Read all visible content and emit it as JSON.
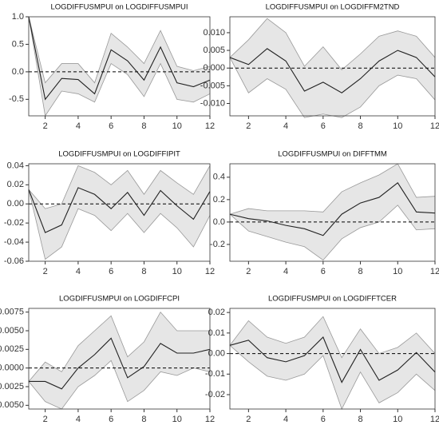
{
  "chart_data": [
    {
      "type": "line",
      "title": "LOGDIFFUSMPUI on LOGDIFFUSMPUI",
      "x": [
        1,
        2,
        3,
        4,
        5,
        6,
        7,
        8,
        9,
        10,
        11,
        12
      ],
      "values": [
        1.0,
        -0.5,
        -0.12,
        -0.14,
        -0.4,
        0.4,
        0.2,
        -0.15,
        0.45,
        -0.2,
        -0.27,
        -0.15
      ],
      "lower": [
        1.0,
        -0.8,
        -0.35,
        -0.4,
        -0.55,
        0.15,
        -0.05,
        -0.45,
        0.15,
        -0.5,
        -0.55,
        -0.4
      ],
      "upper": [
        1.0,
        -0.2,
        0.15,
        0.15,
        -0.2,
        0.7,
        0.45,
        0.15,
        0.75,
        0.1,
        0.02,
        0.1
      ],
      "xlim": [
        1,
        12
      ],
      "xticks": [
        2,
        4,
        6,
        8,
        10,
        12
      ],
      "ylim": [
        -0.8,
        1.0
      ],
      "yticks": [
        {
          "value": -0.5,
          "label": "-0.5"
        },
        {
          "value": 0,
          "label": "0.0"
        },
        {
          "value": 0.5,
          "label": "0.5"
        },
        {
          "value": 1,
          "label": "1.0"
        }
      ],
      "color": "#222222",
      "band_color": "#e6e6e6",
      "band_edge": "#999999",
      "zero_line": true
    },
    {
      "type": "line",
      "title": "LOGDIFFUSMPUI on LOGDIFFM2TND",
      "x": [
        1,
        2,
        3,
        4,
        5,
        6,
        7,
        8,
        9,
        10,
        11,
        12
      ],
      "values": [
        0.003,
        0.001,
        0.0055,
        0.002,
        -0.0065,
        -0.004,
        -0.007,
        -0.003,
        0.002,
        0.005,
        0.003,
        -0.0025
      ],
      "lower": [
        0.003,
        -0.007,
        -0.003,
        -0.006,
        -0.014,
        -0.013,
        -0.014,
        -0.011,
        -0.005,
        -0.002,
        -0.003,
        -0.009
      ],
      "upper": [
        0.003,
        0.008,
        0.014,
        0.01,
        0.0005,
        0.006,
        -0.0005,
        0.004,
        0.009,
        0.0105,
        0.009,
        0.003
      ],
      "xlim": [
        1,
        12
      ],
      "xticks": [
        2,
        4,
        6,
        8,
        10,
        12
      ],
      "ylim": [
        -0.0135,
        0.0145
      ],
      "yticks": [
        {
          "value": -0.01,
          "label": "-0.010"
        },
        {
          "value": -0.005,
          "label": "-0.005"
        },
        {
          "value": 0,
          "label": "0.000"
        },
        {
          "value": 0.005,
          "label": "0.005"
        },
        {
          "value": 0.01,
          "label": "0.010"
        }
      ],
      "color": "#222222",
      "band_color": "#e6e6e6",
      "band_edge": "#999999",
      "zero_line": true
    },
    {
      "type": "line",
      "title": "LOGDIFFUSMPUI on LOGDIFFIPIT",
      "x": [
        1,
        2,
        3,
        4,
        5,
        6,
        7,
        8,
        9,
        10,
        11,
        12
      ],
      "values": [
        0.015,
        -0.03,
        -0.022,
        0.017,
        0.01,
        -0.005,
        0.012,
        -0.012,
        0.014,
        -0.002,
        -0.016,
        0.013
      ],
      "lower": [
        0.015,
        -0.058,
        -0.045,
        -0.005,
        -0.012,
        -0.028,
        -0.01,
        -0.03,
        -0.01,
        -0.025,
        -0.045,
        -0.012
      ],
      "upper": [
        0.015,
        -0.005,
        0.0,
        0.04,
        0.033,
        0.02,
        0.035,
        0.01,
        0.035,
        0.022,
        0.01,
        0.04
      ],
      "xlim": [
        1,
        12
      ],
      "xticks": [
        2,
        4,
        6,
        8,
        10,
        12
      ],
      "ylim": [
        -0.06,
        0.042
      ],
      "yticks": [
        {
          "value": -0.06,
          "label": "-0.06"
        },
        {
          "value": -0.04,
          "label": "-0.04"
        },
        {
          "value": -0.02,
          "label": "-0.02"
        },
        {
          "value": 0,
          "label": "0.00"
        },
        {
          "value": 0.02,
          "label": "0.02"
        },
        {
          "value": 0.04,
          "label": "0.04"
        }
      ],
      "color": "#222222",
      "band_color": "#e6e6e6",
      "band_edge": "#999999",
      "zero_line": true
    },
    {
      "type": "line",
      "title": "LOGDIFFUSMPUI on DIFFTMM",
      "x": [
        1,
        2,
        3,
        4,
        5,
        6,
        7,
        8,
        9,
        10,
        11,
        12
      ],
      "values": [
        0.07,
        0.03,
        0.01,
        -0.03,
        -0.06,
        -0.12,
        0.07,
        0.17,
        0.22,
        0.35,
        0.09,
        0.08
      ],
      "lower": [
        0.07,
        -0.08,
        -0.13,
        -0.18,
        -0.22,
        -0.34,
        -0.15,
        -0.05,
        0.0,
        0.15,
        -0.07,
        -0.06
      ],
      "upper": [
        0.07,
        0.12,
        0.1,
        0.1,
        0.1,
        0.09,
        0.27,
        0.35,
        0.42,
        0.52,
        0.22,
        0.23
      ],
      "xlim": [
        1,
        12
      ],
      "xticks": [
        2,
        4,
        6,
        8,
        10,
        12
      ],
      "ylim": [
        -0.35,
        0.52
      ],
      "yticks": [
        {
          "value": -0.2,
          "label": "-0.2"
        },
        {
          "value": 0,
          "label": "0.0"
        },
        {
          "value": 0.2,
          "label": "0.2"
        },
        {
          "value": 0.4,
          "label": "0.4"
        }
      ],
      "color": "#222222",
      "band_color": "#e6e6e6",
      "band_edge": "#999999",
      "zero_line": true
    },
    {
      "type": "line",
      "title": "LOGDIFFUSMPUI on LOGDIFFCPI",
      "x": [
        1,
        2,
        3,
        4,
        5,
        6,
        7,
        8,
        9,
        10,
        11,
        12
      ],
      "values": [
        -0.0018,
        -0.0018,
        -0.0028,
        0.0,
        0.0018,
        0.004,
        -0.0013,
        0.0002,
        0.0033,
        0.002,
        0.002,
        0.0025
      ],
      "lower": [
        -0.0018,
        -0.0045,
        -0.0055,
        -0.0025,
        -0.001,
        0.001,
        -0.0045,
        -0.003,
        -0.0005,
        -0.001,
        0.0,
        -0.0005
      ],
      "upper": [
        -0.0018,
        0.0008,
        -0.0005,
        0.003,
        0.005,
        0.007,
        0.0015,
        0.0035,
        0.0075,
        0.005,
        0.005,
        0.005
      ],
      "xlim": [
        1,
        12
      ],
      "xticks": [
        2,
        4,
        6,
        8,
        10,
        12
      ],
      "ylim": [
        -0.0055,
        0.008
      ],
      "yticks": [
        {
          "value": -0.005,
          "label": "-0.0050"
        },
        {
          "value": -0.0025,
          "label": "-0.0025"
        },
        {
          "value": 0,
          "label": "0.0000"
        },
        {
          "value": 0.0025,
          "label": "0.0025"
        },
        {
          "value": 0.005,
          "label": "0.0050"
        },
        {
          "value": 0.0075,
          "label": "0.0075"
        }
      ],
      "color": "#222222",
      "band_color": "#e6e6e6",
      "band_edge": "#999999",
      "zero_line": true
    },
    {
      "type": "line",
      "title": "LOGDIFFUSMPUI on LOGDIFFTCER",
      "x": [
        1,
        2,
        3,
        4,
        5,
        6,
        7,
        8,
        9,
        10,
        11,
        12
      ],
      "values": [
        0.004,
        0.0065,
        -0.002,
        -0.004,
        -0.001,
        0.008,
        -0.014,
        0.002,
        -0.013,
        -0.008,
        0.0005,
        -0.009
      ],
      "lower": [
        0.004,
        -0.004,
        -0.011,
        -0.013,
        -0.01,
        -0.001,
        -0.027,
        -0.009,
        -0.024,
        -0.019,
        -0.01,
        -0.018
      ],
      "upper": [
        0.004,
        0.016,
        0.008,
        0.005,
        0.008,
        0.018,
        -0.002,
        0.012,
        0.0,
        0.003,
        0.01,
        0.0
      ],
      "xlim": [
        1,
        12
      ],
      "xticks": [
        2,
        4,
        6,
        8,
        10,
        12
      ],
      "ylim": [
        -0.027,
        0.022
      ],
      "yticks": [
        {
          "value": -0.02,
          "label": "-0.02"
        },
        {
          "value": -0.01,
          "label": "-0.01"
        },
        {
          "value": 0,
          "label": "0.00"
        },
        {
          "value": 0.01,
          "label": "0.01"
        },
        {
          "value": 0.02,
          "label": "0.02"
        }
      ],
      "color": "#222222",
      "band_color": "#e6e6e6",
      "band_edge": "#999999",
      "zero_line": true
    }
  ]
}
